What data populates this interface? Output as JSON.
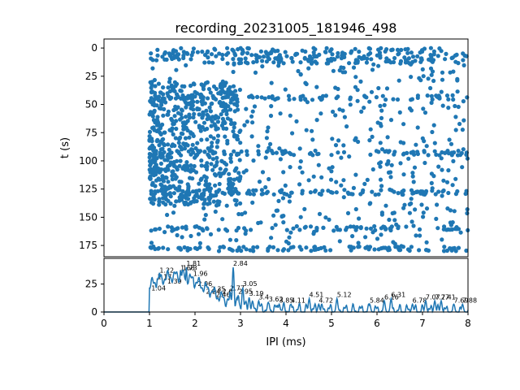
{
  "chart_data": [
    {
      "type": "scatter",
      "title": "recording_20231005_181946_498",
      "xlabel": "",
      "ylabel": "t (s)",
      "xlim": [
        0,
        8
      ],
      "ylim": [
        185,
        -8
      ],
      "y_inverted": true,
      "yticks": [
        "0",
        "25",
        "50",
        "75",
        "100",
        "125",
        "150",
        "175"
      ],
      "color": "#1f77b4",
      "grid": false,
      "dense_rows_t": [
        44,
        93,
        128,
        160,
        178
      ],
      "dense_cluster": {
        "x": [
          1.0,
          3.0
        ],
        "t": [
          30,
          140
        ]
      }
    },
    {
      "type": "line",
      "title": "",
      "xlabel": "IPI (ms)",
      "ylabel": "",
      "xlim": [
        0,
        8
      ],
      "ylim": [
        0,
        48
      ],
      "xticks": [
        "0",
        "1",
        "2",
        "3",
        "4",
        "5",
        "6",
        "7",
        "8"
      ],
      "yticks": [
        "0",
        "25"
      ],
      "color": "#1f77b4",
      "grid": false,
      "peaks": [
        {
          "x": 1.04,
          "y": 18,
          "label": "1.04"
        },
        {
          "x": 1.17,
          "y": 28,
          "label": "1.17"
        },
        {
          "x": 1.22,
          "y": 34,
          "label": "1.22"
        },
        {
          "x": 1.39,
          "y": 24,
          "label": "1.39"
        },
        {
          "x": 1.68,
          "y": 36,
          "label": "1.68"
        },
        {
          "x": 1.73,
          "y": 36,
          "label": "1.73"
        },
        {
          "x": 1.81,
          "y": 40,
          "label": "1.81"
        },
        {
          "x": 1.96,
          "y": 31,
          "label": "1.96"
        },
        {
          "x": 2.06,
          "y": 22,
          "label": "2.06"
        },
        {
          "x": 2.24,
          "y": 15,
          "label": "2.24"
        },
        {
          "x": 2.35,
          "y": 17,
          "label": "2.35"
        },
        {
          "x": 2.46,
          "y": 12,
          "label": "2.46"
        },
        {
          "x": 2.6,
          "y": 15,
          "label": "2.6"
        },
        {
          "x": 2.77,
          "y": 18,
          "label": "2.77"
        },
        {
          "x": 2.84,
          "y": 40,
          "label": "2.84"
        },
        {
          "x": 2.95,
          "y": 15,
          "label": "2.95"
        },
        {
          "x": 3.05,
          "y": 22,
          "label": "3.05"
        },
        {
          "x": 3.19,
          "y": 13,
          "label": "3.19"
        },
        {
          "x": 3.4,
          "y": 10,
          "label": "3.4"
        },
        {
          "x": 3.62,
          "y": 8,
          "label": "3.62"
        },
        {
          "x": 3.85,
          "y": 7,
          "label": "3.85"
        },
        {
          "x": 4.11,
          "y": 7,
          "label": "4.11"
        },
        {
          "x": 4.51,
          "y": 12,
          "label": "4.51"
        },
        {
          "x": 4.72,
          "y": 7,
          "label": "4.72"
        },
        {
          "x": 5.12,
          "y": 12,
          "label": "5.12"
        },
        {
          "x": 5.84,
          "y": 7,
          "label": "5.84"
        },
        {
          "x": 6.16,
          "y": 10,
          "label": "6.16"
        },
        {
          "x": 6.31,
          "y": 12,
          "label": "6.31"
        },
        {
          "x": 6.78,
          "y": 7,
          "label": "6.78"
        },
        {
          "x": 7.07,
          "y": 10,
          "label": "7.07"
        },
        {
          "x": 7.27,
          "y": 10,
          "label": "7.27"
        },
        {
          "x": 7.41,
          "y": 10,
          "label": "7.41"
        },
        {
          "x": 7.69,
          "y": 7,
          "label": "7.69"
        },
        {
          "x": 7.88,
          "y": 7,
          "label": "7.88"
        }
      ]
    }
  ]
}
